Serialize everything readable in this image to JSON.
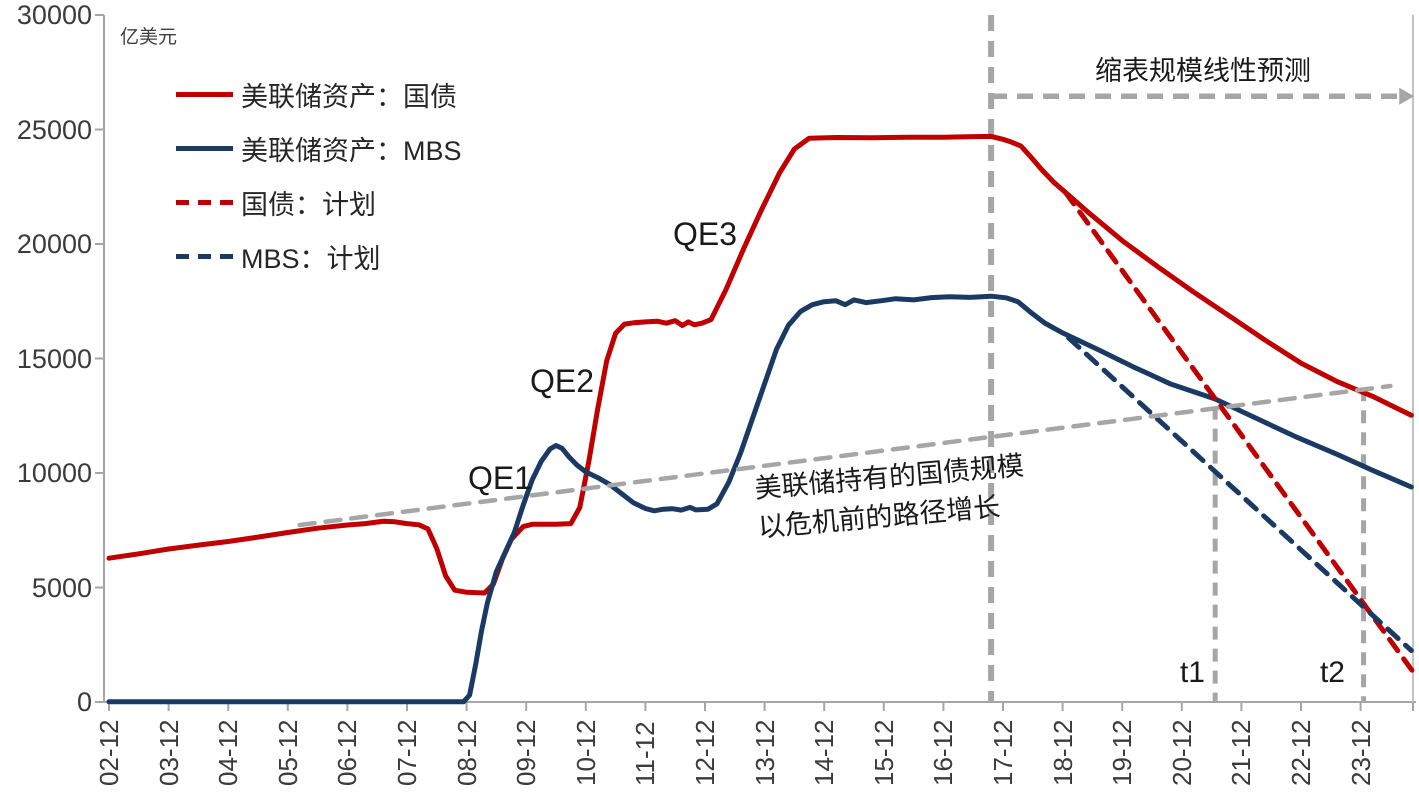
{
  "unit_label": "亿美元",
  "legend": {
    "items": [
      {
        "label": "美联储资产：国债",
        "color": "#c00000",
        "style": "solid"
      },
      {
        "label": "美联储资产：MBS",
        "color": "#1a3a64",
        "style": "solid"
      },
      {
        "label": "国债：计划",
        "color": "#c00000",
        "style": "dashed"
      },
      {
        "label": "MBS：计划",
        "color": "#1a3a64",
        "style": "dashed"
      }
    ]
  },
  "annotations": {
    "qe1": "QE1",
    "qe2": "QE2",
    "qe3": "QE3",
    "forecast": "缩表规模线性预测",
    "trend_line1": "美联储持有的国债规模",
    "trend_line2": "以危机前的路径增长",
    "t1": "t1",
    "t2": "t2"
  },
  "colors": {
    "treasury": "#c00000",
    "mbs": "#1a3a64",
    "guide_gray": "#a6a6a6",
    "axis_gray": "#a6a6a6",
    "border_gray": "#c3c3c3",
    "tick_text": "#3b3b3b"
  },
  "chart_data": {
    "type": "line",
    "title": "",
    "ylabel": "亿美元",
    "ylim": [
      0,
      30000
    ],
    "grid": false,
    "legend_position": "upper-left",
    "y_ticks": [
      0,
      5000,
      10000,
      15000,
      20000,
      25000,
      30000
    ],
    "x_labels": [
      "02-12",
      "03-12",
      "04-12",
      "05-12",
      "06-12",
      "07-12",
      "08-12",
      "09-12",
      "10-12",
      "11-12",
      "12-12",
      "13-12",
      "14-12",
      "15-12",
      "16-12",
      "17-12",
      "18-12",
      "19-12",
      "20-12",
      "21-12",
      "22-12",
      "23-12"
    ],
    "x_note": "points use x = years after 02-12 (one unit per x label)",
    "series": [
      {
        "name": "美联储资产：国债",
        "color": "#c00000",
        "dash": null,
        "width": 5,
        "points": [
          [
            0,
            6280
          ],
          [
            0.5,
            6470
          ],
          [
            1,
            6680
          ],
          [
            1.5,
            6850
          ],
          [
            2,
            7010
          ],
          [
            2.5,
            7200
          ],
          [
            3,
            7400
          ],
          [
            3.5,
            7590
          ],
          [
            4,
            7730
          ],
          [
            4.3,
            7790
          ],
          [
            4.6,
            7890
          ],
          [
            4.8,
            7870
          ],
          [
            5.0,
            7790
          ],
          [
            5.2,
            7740
          ],
          [
            5.35,
            7560
          ],
          [
            5.5,
            6700
          ],
          [
            5.65,
            5500
          ],
          [
            5.8,
            4880
          ],
          [
            6.0,
            4790
          ],
          [
            6.3,
            4760
          ],
          [
            6.45,
            5150
          ],
          [
            6.6,
            6250
          ],
          [
            6.75,
            7100
          ],
          [
            6.95,
            7660
          ],
          [
            7.1,
            7760
          ],
          [
            7.5,
            7760
          ],
          [
            7.75,
            7790
          ],
          [
            7.9,
            8500
          ],
          [
            8.05,
            10500
          ],
          [
            8.2,
            12800
          ],
          [
            8.35,
            14900
          ],
          [
            8.5,
            16100
          ],
          [
            8.65,
            16500
          ],
          [
            8.8,
            16560
          ],
          [
            9.0,
            16600
          ],
          [
            9.2,
            16630
          ],
          [
            9.35,
            16540
          ],
          [
            9.5,
            16650
          ],
          [
            9.62,
            16440
          ],
          [
            9.72,
            16600
          ],
          [
            9.82,
            16470
          ],
          [
            9.95,
            16540
          ],
          [
            10.1,
            16700
          ],
          [
            10.35,
            18000
          ],
          [
            10.65,
            19800
          ],
          [
            10.95,
            21500
          ],
          [
            11.25,
            23100
          ],
          [
            11.5,
            24150
          ],
          [
            11.75,
            24620
          ],
          [
            12.2,
            24650
          ],
          [
            12.8,
            24640
          ],
          [
            13.4,
            24660
          ],
          [
            14.0,
            24660
          ],
          [
            14.5,
            24690
          ],
          [
            14.8,
            24700
          ],
          [
            15.0,
            24570
          ],
          [
            15.15,
            24440
          ],
          [
            15.3,
            24280
          ],
          [
            15.45,
            23850
          ],
          [
            15.65,
            23250
          ],
          [
            15.85,
            22700
          ],
          [
            16.05,
            22250
          ],
          [
            16.4,
            21450
          ],
          [
            17.0,
            20150
          ],
          [
            17.6,
            19000
          ],
          [
            18.2,
            17900
          ],
          [
            18.8,
            16850
          ],
          [
            19.4,
            15800
          ],
          [
            20.0,
            14800
          ],
          [
            20.6,
            14000
          ],
          [
            21.2,
            13350
          ],
          [
            21.85,
            12520
          ]
        ]
      },
      {
        "name": "美联储资产：MBS",
        "color": "#1a3a64",
        "dash": null,
        "width": 5,
        "points": [
          [
            0,
            10
          ],
          [
            5.95,
            10
          ],
          [
            6.05,
            300
          ],
          [
            6.15,
            1600
          ],
          [
            6.25,
            3100
          ],
          [
            6.35,
            4350
          ],
          [
            6.5,
            5700
          ],
          [
            6.65,
            6550
          ],
          [
            6.8,
            7400
          ],
          [
            6.95,
            8600
          ],
          [
            7.1,
            9700
          ],
          [
            7.25,
            10500
          ],
          [
            7.4,
            11050
          ],
          [
            7.5,
            11200
          ],
          [
            7.6,
            11080
          ],
          [
            7.72,
            10700
          ],
          [
            7.85,
            10350
          ],
          [
            8.0,
            10050
          ],
          [
            8.2,
            9800
          ],
          [
            8.4,
            9500
          ],
          [
            8.6,
            9100
          ],
          [
            8.8,
            8700
          ],
          [
            9.0,
            8450
          ],
          [
            9.15,
            8350
          ],
          [
            9.3,
            8420
          ],
          [
            9.45,
            8440
          ],
          [
            9.6,
            8380
          ],
          [
            9.75,
            8500
          ],
          [
            9.85,
            8390
          ],
          [
            10.05,
            8420
          ],
          [
            10.2,
            8650
          ],
          [
            10.4,
            9600
          ],
          [
            10.6,
            10900
          ],
          [
            10.8,
            12400
          ],
          [
            11.0,
            13900
          ],
          [
            11.2,
            15400
          ],
          [
            11.4,
            16450
          ],
          [
            11.6,
            17050
          ],
          [
            11.8,
            17350
          ],
          [
            12.0,
            17480
          ],
          [
            12.2,
            17520
          ],
          [
            12.35,
            17350
          ],
          [
            12.5,
            17560
          ],
          [
            12.7,
            17440
          ],
          [
            12.95,
            17520
          ],
          [
            13.2,
            17610
          ],
          [
            13.5,
            17560
          ],
          [
            13.8,
            17660
          ],
          [
            14.1,
            17700
          ],
          [
            14.45,
            17670
          ],
          [
            14.8,
            17720
          ],
          [
            15.05,
            17650
          ],
          [
            15.25,
            17480
          ],
          [
            15.45,
            17050
          ],
          [
            15.7,
            16550
          ],
          [
            16.0,
            16120
          ],
          [
            16.6,
            15380
          ],
          [
            17.2,
            14620
          ],
          [
            17.8,
            13900
          ],
          [
            18.56,
            13230
          ],
          [
            19.2,
            12450
          ],
          [
            19.9,
            11600
          ],
          [
            20.6,
            10820
          ],
          [
            21.2,
            10120
          ],
          [
            21.85,
            9390
          ]
        ]
      },
      {
        "name": "国债：计划",
        "color": "#c00000",
        "dash": [
          14,
          10
        ],
        "width": 5,
        "points": [
          [
            16.05,
            22250
          ],
          [
            21.9,
            1250
          ]
        ]
      },
      {
        "name": "MBS：计划",
        "color": "#1a3a64",
        "dash": [
          14,
          10
        ],
        "width": 5,
        "points": [
          [
            16.1,
            15900
          ],
          [
            21.85,
            2250
          ]
        ]
      },
      {
        "name": "危机前路径趋势线",
        "color": "#a6a6a6",
        "dash": [
          15,
          11
        ],
        "width": 4.5,
        "points": [
          [
            3.2,
            7730
          ],
          [
            21.5,
            13800
          ]
        ]
      }
    ],
    "guides": {
      "shrink_start_vline": {
        "t": 14.8,
        "v_top": 30000,
        "v_bottom": 0,
        "width": 6,
        "dash": "16 10"
      },
      "t1_vline": {
        "t": 18.56,
        "v_top": 12900,
        "v_bottom": 0,
        "width": 5,
        "dash": "13 9"
      },
      "t2_vline": {
        "t": 21.05,
        "v_top": 13700,
        "v_bottom": 0,
        "width": 5,
        "dash": "13 9"
      },
      "forecast_arrow": {
        "v": 26450,
        "t_start": 14.8,
        "t_end": 21.9,
        "width": 5.5,
        "dash": "16 10"
      }
    }
  }
}
